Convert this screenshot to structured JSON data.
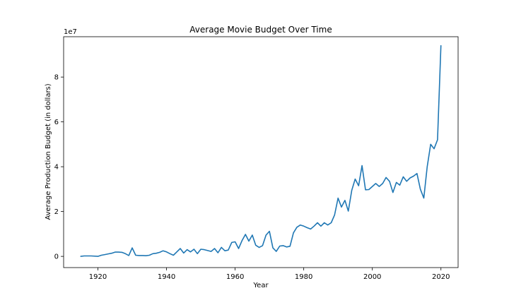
{
  "chart_data": {
    "type": "line",
    "title": "Average Movie Budget Over Time",
    "xlabel": "Year",
    "ylabel": "Average Production Budget (in dollars)",
    "y_multiplier_label": "1e7",
    "xlim": [
      1910,
      2025
    ],
    "ylim": [
      -0.5,
      9.8
    ],
    "y_unit_scale": 10000000,
    "xticks": [
      1920,
      1940,
      1960,
      1980,
      2000,
      2020
    ],
    "yticks": [
      0,
      2,
      4,
      6,
      8
    ],
    "grid": false,
    "legend": "none",
    "line_color": "#1f77b4",
    "series": [
      {
        "x": [
          1915,
          1916,
          1918,
          1920,
          1921,
          1922,
          1923,
          1924,
          1925,
          1926,
          1927,
          1928,
          1929,
          1930,
          1931,
          1932,
          1933,
          1934,
          1935,
          1936,
          1937,
          1938,
          1939,
          1940,
          1941,
          1942,
          1943,
          1944,
          1945,
          1946,
          1947,
          1948,
          1949,
          1950,
          1951,
          1952,
          1953,
          1954,
          1955,
          1956,
          1957,
          1958,
          1959,
          1960,
          1961,
          1962,
          1963,
          1964,
          1965,
          1966,
          1967,
          1968,
          1969,
          1970,
          1971,
          1972,
          1973,
          1974,
          1975,
          1976,
          1977,
          1978,
          1979,
          1980,
          1981,
          1982,
          1983,
          1984,
          1985,
          1986,
          1987,
          1988,
          1989,
          1990,
          1991,
          1992,
          1993,
          1994,
          1995,
          1996,
          1997,
          1998,
          1999,
          2000,
          2001,
          2002,
          2003,
          2004,
          2005,
          2006,
          2007,
          2008,
          2009,
          2010,
          2011,
          2012,
          2013,
          2014,
          2015,
          2016,
          2017,
          2018,
          2019,
          2020
        ],
        "values": [
          0.0,
          0.02,
          0.02,
          0.0,
          0.05,
          0.08,
          0.11,
          0.14,
          0.19,
          0.19,
          0.18,
          0.12,
          0.04,
          0.38,
          0.05,
          0.04,
          0.04,
          0.03,
          0.05,
          0.12,
          0.14,
          0.18,
          0.25,
          0.2,
          0.12,
          0.05,
          0.2,
          0.35,
          0.15,
          0.3,
          0.2,
          0.32,
          0.12,
          0.32,
          0.3,
          0.26,
          0.22,
          0.35,
          0.16,
          0.4,
          0.25,
          0.28,
          0.62,
          0.65,
          0.35,
          0.7,
          0.98,
          0.68,
          0.95,
          0.5,
          0.4,
          0.48,
          0.95,
          1.12,
          0.38,
          0.22,
          0.46,
          0.48,
          0.42,
          0.45,
          1.05,
          1.3,
          1.4,
          1.35,
          1.28,
          1.22,
          1.35,
          1.5,
          1.35,
          1.5,
          1.4,
          1.5,
          1.85,
          2.6,
          2.2,
          2.5,
          2.02,
          2.95,
          3.45,
          3.15,
          4.05,
          2.97,
          2.98,
          3.12,
          3.25,
          3.12,
          3.25,
          3.52,
          3.35,
          2.85,
          3.3,
          3.18,
          3.55,
          3.35,
          3.5,
          3.58,
          3.7,
          3.0,
          2.6,
          4.0,
          5.0,
          4.8,
          5.2,
          9.4
        ]
      }
    ]
  }
}
